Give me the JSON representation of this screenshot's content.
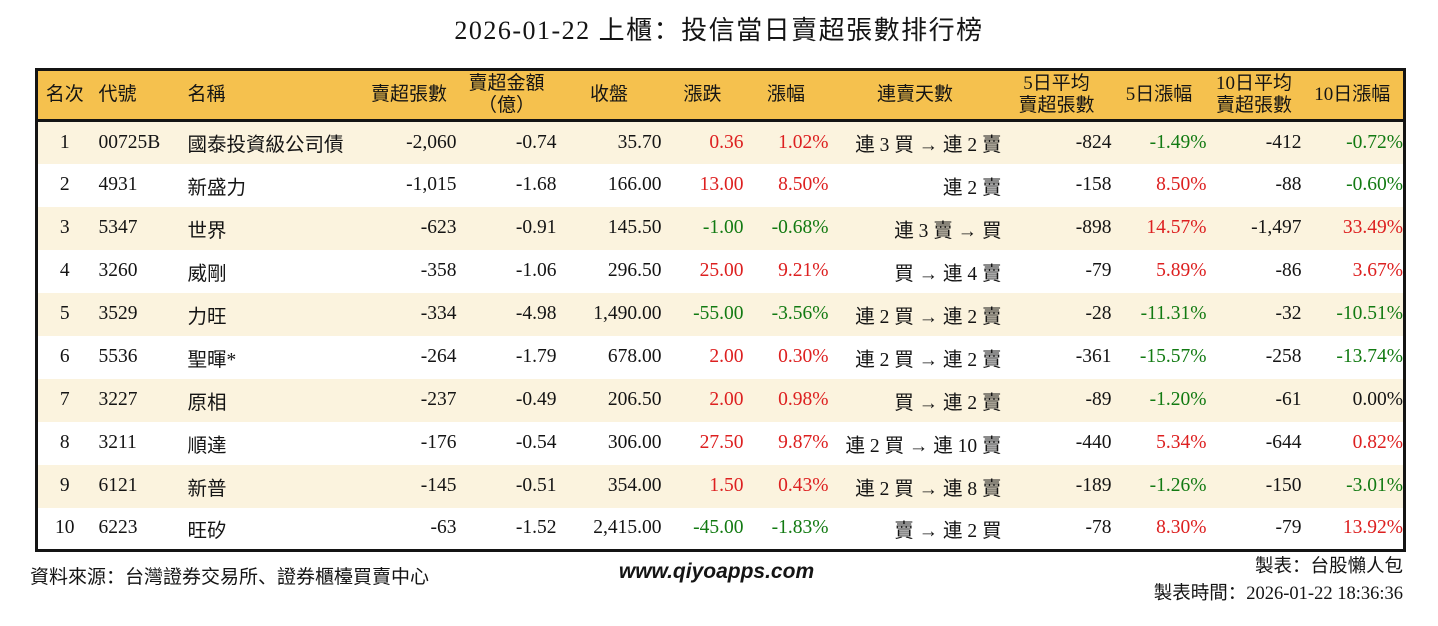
{
  "title": "2026-01-22 上櫃：投信當日賣超張數排行榜",
  "colors": {
    "up_red": "#dd2020",
    "down_green": "#127a12",
    "header_bg": "#f5c14e",
    "row_stripe": "#fbf3de",
    "border": "#141414"
  },
  "chart_data": {
    "type": "table",
    "title": "2026-01-22 上櫃：投信當日賣超張數排行榜",
    "columns": [
      "名次",
      "代號",
      "名稱",
      "賣超張數",
      "賣超金額\n（億）",
      "收盤",
      "漲跌",
      "漲幅",
      "連賣天數",
      "5日平均\n賣超張數",
      "5日漲幅",
      "10日平均\n賣超張數",
      "10日漲幅"
    ],
    "rows": [
      [
        "1",
        "00725B",
        "國泰投資級公司債",
        "-2,060",
        "-0.74",
        "35.70",
        {
          "t": "0.36",
          "c": "up"
        },
        {
          "t": "1.02%",
          "c": "up"
        },
        "連 3 買 → 連 2 賣",
        "-824",
        {
          "t": "-1.49%",
          "c": "down"
        },
        "-412",
        {
          "t": "-0.72%",
          "c": "down"
        }
      ],
      [
        "2",
        "4931",
        "新盛力",
        "-1,015",
        "-1.68",
        "166.00",
        {
          "t": "13.00",
          "c": "up"
        },
        {
          "t": "8.50%",
          "c": "up"
        },
        "連 2 賣",
        "-158",
        {
          "t": "8.50%",
          "c": "up"
        },
        "-88",
        {
          "t": "-0.60%",
          "c": "down"
        }
      ],
      [
        "3",
        "5347",
        "世界",
        "-623",
        "-0.91",
        "145.50",
        {
          "t": "-1.00",
          "c": "down"
        },
        {
          "t": "-0.68%",
          "c": "down"
        },
        "連 3 賣 → 買",
        "-898",
        {
          "t": "14.57%",
          "c": "up"
        },
        "-1,497",
        {
          "t": "33.49%",
          "c": "up"
        }
      ],
      [
        "4",
        "3260",
        "威剛",
        "-358",
        "-1.06",
        "296.50",
        {
          "t": "25.00",
          "c": "up"
        },
        {
          "t": "9.21%",
          "c": "up"
        },
        "買 → 連 4 賣",
        "-79",
        {
          "t": "5.89%",
          "c": "up"
        },
        "-86",
        {
          "t": "3.67%",
          "c": "up"
        }
      ],
      [
        "5",
        "3529",
        "力旺",
        "-334",
        "-4.98",
        "1,490.00",
        {
          "t": "-55.00",
          "c": "down"
        },
        {
          "t": "-3.56%",
          "c": "down"
        },
        "連 2 買 → 連 2 賣",
        "-28",
        {
          "t": "-11.31%",
          "c": "down"
        },
        "-32",
        {
          "t": "-10.51%",
          "c": "down"
        }
      ],
      [
        "6",
        "5536",
        "聖暉*",
        "-264",
        "-1.79",
        "678.00",
        {
          "t": "2.00",
          "c": "up"
        },
        {
          "t": "0.30%",
          "c": "up"
        },
        "連 2 買 → 連 2 賣",
        "-361",
        {
          "t": "-15.57%",
          "c": "down"
        },
        "-258",
        {
          "t": "-13.74%",
          "c": "down"
        }
      ],
      [
        "7",
        "3227",
        "原相",
        "-237",
        "-0.49",
        "206.50",
        {
          "t": "2.00",
          "c": "up"
        },
        {
          "t": "0.98%",
          "c": "up"
        },
        "買 → 連 2 賣",
        "-89",
        {
          "t": "-1.20%",
          "c": "down"
        },
        "-61",
        {
          "t": "0.00%"
        }
      ],
      [
        "8",
        "3211",
        "順達",
        "-176",
        "-0.54",
        "306.00",
        {
          "t": "27.50",
          "c": "up"
        },
        {
          "t": "9.87%",
          "c": "up"
        },
        "連 2 買 → 連 10 賣",
        "-440",
        {
          "t": "5.34%",
          "c": "up"
        },
        "-644",
        {
          "t": "0.82%",
          "c": "up"
        }
      ],
      [
        "9",
        "6121",
        "新普",
        "-145",
        "-0.51",
        "354.00",
        {
          "t": "1.50",
          "c": "up"
        },
        {
          "t": "0.43%",
          "c": "up"
        },
        "連 2 買 → 連 8 賣",
        "-189",
        {
          "t": "-1.26%",
          "c": "down"
        },
        "-150",
        {
          "t": "-3.01%",
          "c": "down"
        }
      ],
      [
        "10",
        "6223",
        "旺矽",
        "-63",
        "-1.52",
        "2,415.00",
        {
          "t": "-45.00",
          "c": "down"
        },
        {
          "t": "-1.83%",
          "c": "down"
        },
        "賣 → 連 2 買",
        "-78",
        {
          "t": "8.30%",
          "c": "up"
        },
        "-79",
        {
          "t": "13.92%",
          "c": "up"
        }
      ]
    ]
  },
  "footer": {
    "source": "資料來源：台灣證券交易所、證券櫃檯買賣中心",
    "website": "www.qiyoapps.com",
    "maker": "製表：台股懶人包",
    "made_time": "製表時間：2026-01-22 18:36:36"
  }
}
